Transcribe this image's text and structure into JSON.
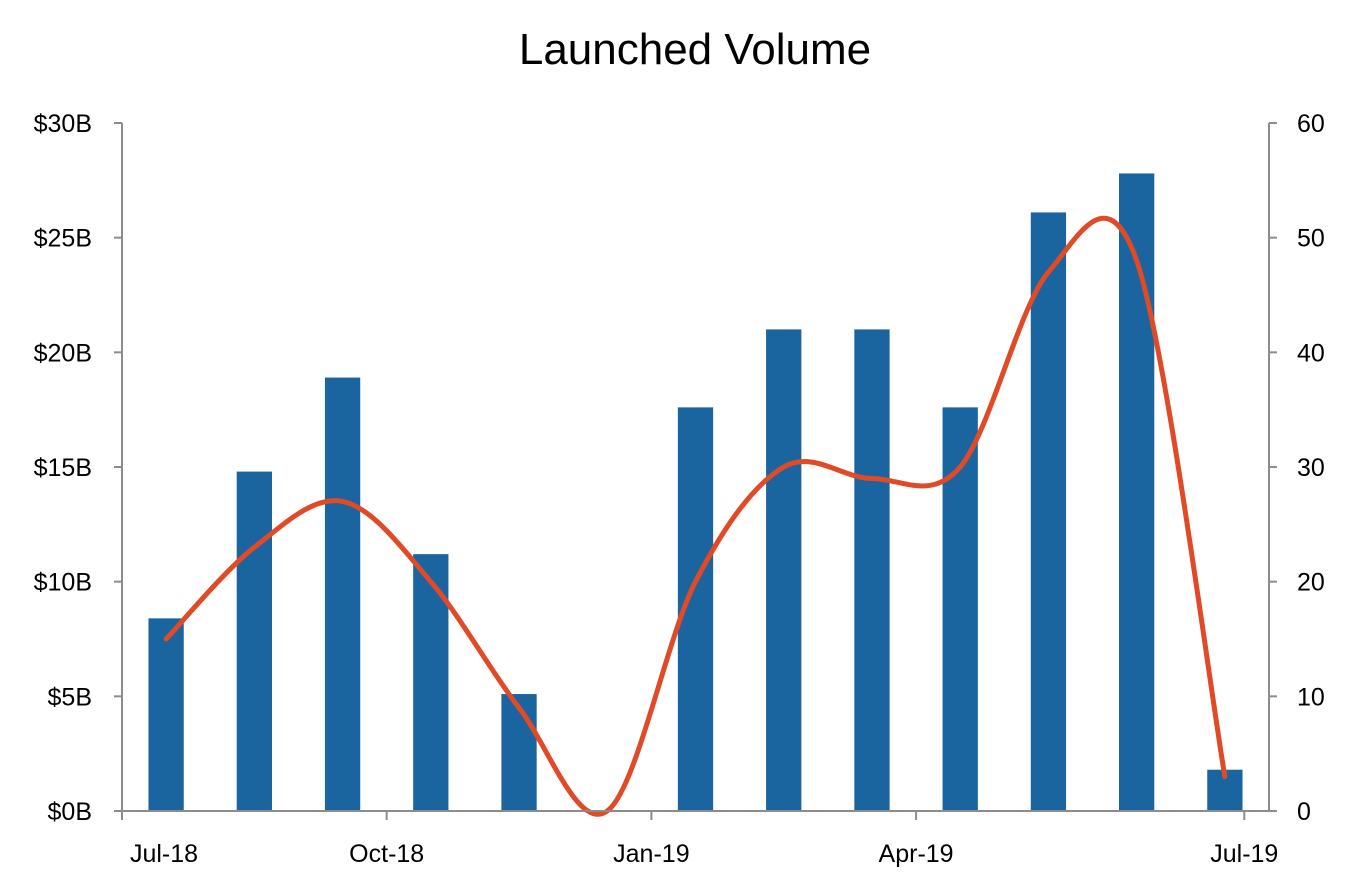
{
  "chart_data": {
    "type": "bar",
    "title": "Launched Volume",
    "xlabel": "",
    "ylabel": "",
    "y2label": "",
    "x_tick_labels": [
      "Jul-18",
      "Oct-18",
      "Jan-19",
      "Apr-19",
      "Jul-19"
    ],
    "x_tick_positions": [
      "Jul-18",
      "Oct-18",
      "Jan-19",
      "Apr-19",
      "Jul-19"
    ],
    "categories": [
      "Jul-18",
      "Aug-18",
      "Sep-18",
      "Oct-18",
      "Nov-18",
      "Dec-18",
      "Jan-19",
      "Feb-19",
      "Mar-19",
      "Apr-19",
      "May-19",
      "Jun-19",
      "Jul-19"
    ],
    "ylim": [
      0,
      30
    ],
    "y_ticks": [
      0,
      5,
      10,
      15,
      20,
      25,
      30
    ],
    "y_tick_labels": [
      "$0B",
      "$5B",
      "$10B",
      "$15B",
      "$20B",
      "$25B",
      "$30B"
    ],
    "y2lim": [
      0,
      60
    ],
    "y2_ticks": [
      0,
      10,
      20,
      30,
      40,
      50,
      60
    ],
    "y2_tick_labels": [
      "0",
      "10",
      "20",
      "30",
      "40",
      "50",
      "60"
    ],
    "grid": false,
    "legend": "none",
    "series": [
      {
        "type": "bar",
        "axis": "left",
        "color": "#1a65a0",
        "values": [
          8.4,
          14.8,
          18.9,
          11.2,
          5.1,
          0,
          17.6,
          21.0,
          21.0,
          17.6,
          26.1,
          27.8,
          1.8
        ]
      },
      {
        "type": "line",
        "axis": "right",
        "smooth": true,
        "color": "#e04a26",
        "values": [
          15,
          23,
          27,
          20,
          9,
          0,
          20,
          30,
          29,
          30,
          47,
          48,
          3
        ]
      }
    ]
  }
}
